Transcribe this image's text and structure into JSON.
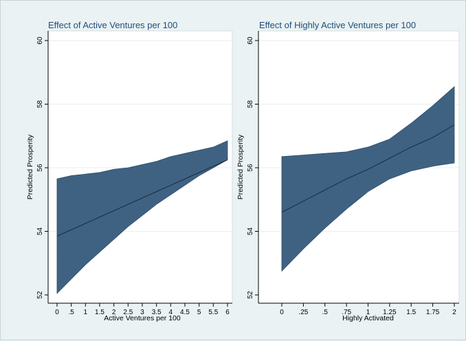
{
  "colors": {
    "background": "#eaf2f3",
    "plot_area": "#ffffff",
    "band_fill": "#3f6282",
    "line": "#1a2f45",
    "title": "#1f4e79",
    "grid": "#e7eef0"
  },
  "chart_data": [
    {
      "type": "area",
      "title": "Effect of Active Ventures per 100",
      "xlabel": "Active Ventures per 100",
      "ylabel": "Predicted Prosperity",
      "xlim": [
        0,
        6
      ],
      "ylim": [
        52,
        60
      ],
      "grid": true,
      "x_ticks": [
        "0",
        ".5",
        "1",
        "1.5",
        "2",
        "2.5",
        "3",
        "3.5",
        "4",
        "4.5",
        "5",
        "5.5",
        "6"
      ],
      "x_tick_values": [
        0,
        0.5,
        1,
        1.5,
        2,
        2.5,
        3,
        3.5,
        4,
        4.5,
        5,
        5.5,
        6
      ],
      "y_ticks": [
        "52",
        "54",
        "56",
        "58",
        "60"
      ],
      "y_tick_values": [
        52,
        54,
        56,
        58,
        60
      ],
      "x": [
        0,
        0.5,
        1,
        1.5,
        2,
        2.5,
        3,
        3.5,
        4,
        4.5,
        5,
        5.5,
        6
      ],
      "series": [
        {
          "values": [
            53.85,
            54.05,
            54.25,
            54.45,
            54.65,
            54.85,
            55.05,
            55.25,
            55.45,
            55.65,
            55.85,
            56.05,
            56.25
          ]
        }
      ],
      "lower": [
        52.05,
        52.5,
        52.95,
        53.35,
        53.75,
        54.15,
        54.5,
        54.85,
        55.15,
        55.45,
        55.75,
        56.0,
        56.25
      ],
      "upper": [
        55.65,
        55.75,
        55.8,
        55.85,
        55.95,
        56.0,
        56.1,
        56.2,
        56.35,
        56.45,
        56.55,
        56.65,
        56.85
      ]
    },
    {
      "type": "area",
      "title": "Effect of Highly Active Ventures per 100",
      "xlabel": "Highly Activated",
      "ylabel": "Predicted Prosperity",
      "xlim": [
        0,
        2
      ],
      "ylim": [
        52,
        60
      ],
      "grid": true,
      "x_ticks": [
        "0",
        ".25",
        ".5",
        ".75",
        "1",
        "1.25",
        "1.5",
        "1.75",
        "2"
      ],
      "x_tick_values": [
        0,
        0.25,
        0.5,
        0.75,
        1,
        1.25,
        1.5,
        1.75,
        2
      ],
      "y_ticks": [
        "52",
        "54",
        "56",
        "58",
        "60"
      ],
      "y_tick_values": [
        52,
        54,
        56,
        58,
        60
      ],
      "x": [
        0,
        0.25,
        0.5,
        0.75,
        1,
        1.25,
        1.5,
        1.75,
        2
      ],
      "series": [
        {
          "values": [
            54.6,
            54.95,
            55.3,
            55.65,
            55.95,
            56.3,
            56.65,
            56.95,
            57.35
          ]
        }
      ],
      "lower": [
        52.75,
        53.45,
        54.1,
        54.7,
        55.25,
        55.65,
        55.9,
        56.05,
        56.15
      ],
      "upper": [
        56.35,
        56.4,
        56.45,
        56.5,
        56.65,
        56.9,
        57.4,
        57.95,
        58.55
      ]
    }
  ]
}
